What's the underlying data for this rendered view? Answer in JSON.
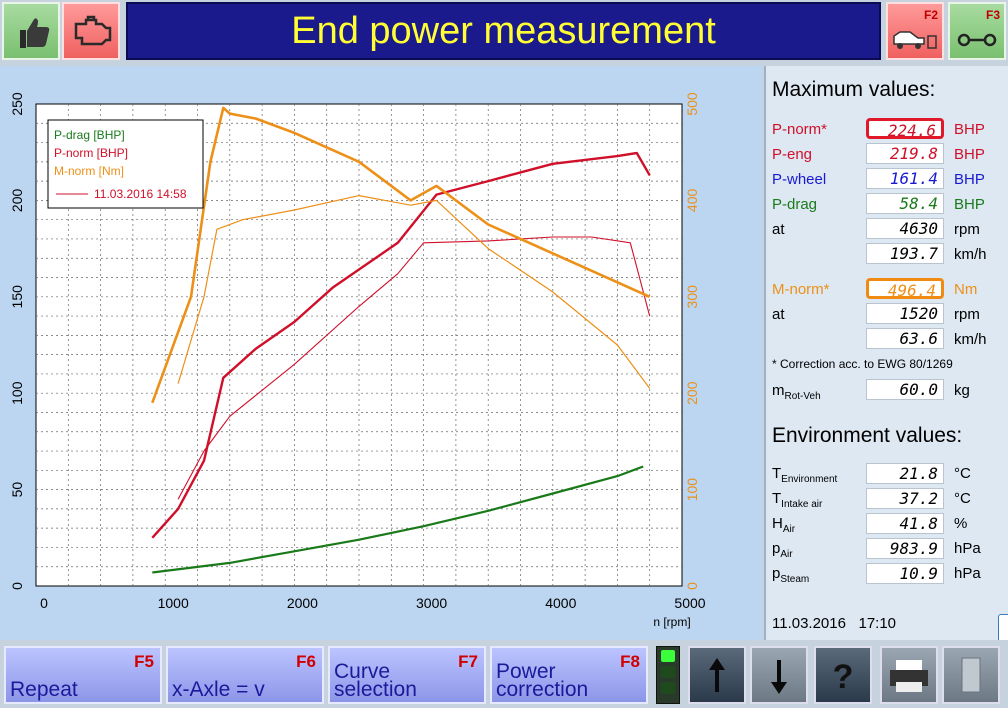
{
  "header": {
    "title": "End power measurement",
    "f2_label": "F2",
    "f3_label": "F3",
    "icons": [
      "thumbs-up-icon",
      "engine-icon",
      "car-on-dyno-icon",
      "rollers-icon"
    ]
  },
  "chart": {
    "xlabel": "n [rpm]",
    "legend": {
      "entries": [
        "P-drag [BHP]",
        "P-norm [BHP]",
        "M-norm [Nm]"
      ],
      "measurement": "11.03.2016 14:58"
    },
    "x_ticks": [
      "0",
      "1000",
      "2000",
      "3000",
      "4000",
      "5000"
    ],
    "y_left_ticks": [
      "0",
      "50",
      "100",
      "150",
      "200",
      "250"
    ],
    "y_right_ticks": [
      "0",
      "100",
      "200",
      "300",
      "400",
      "500"
    ]
  },
  "chart_data": {
    "type": "line",
    "xlabel": "n [rpm]",
    "xlim": [
      0,
      5000
    ],
    "ylim_left": [
      0,
      250
    ],
    "ylim_right": [
      0,
      500
    ],
    "grid": true,
    "legend_position": "top-left",
    "series": [
      {
        "name": "P-drag [BHP]",
        "axis": "left",
        "color": "#1a7a1a",
        "x": [
          900,
          1500,
          2000,
          2500,
          3000,
          3500,
          4000,
          4500,
          4700
        ],
        "y": [
          7,
          12,
          18,
          24,
          31,
          39,
          48,
          57,
          62
        ]
      },
      {
        "name": "P-norm [BHP]",
        "axis": "left",
        "color": "#d0102a",
        "x": [
          900,
          1100,
          1300,
          1450,
          1700,
          2000,
          2300,
          2800,
          3100,
          3500,
          4000,
          4500,
          4650,
          4750
        ],
        "y": [
          25,
          40,
          65,
          108,
          123,
          137,
          155,
          178,
          203,
          210,
          219,
          223,
          224.6,
          213
        ]
      },
      {
        "name": "P-norm [BHP] 11.03.2016 14:58",
        "axis": "left",
        "color": "#d0102a",
        "x": [
          1100,
          1300,
          1500,
          2000,
          2500,
          2800,
          3000,
          3500,
          4000,
          4300,
          4600,
          4750
        ],
        "y": [
          45,
          70,
          88,
          115,
          145,
          162,
          178,
          179,
          181,
          181,
          178,
          140
        ]
      },
      {
        "name": "M-norm [Nm]",
        "axis": "right",
        "color": "#ec9018",
        "x": [
          900,
          1200,
          1350,
          1450,
          1500,
          1700,
          2000,
          2500,
          2900,
          3100,
          3500,
          4000,
          4500,
          4750
        ],
        "y": [
          190,
          300,
          440,
          496,
          490,
          485,
          470,
          440,
          400,
          415,
          375,
          345,
          315,
          300
        ]
      },
      {
        "name": "M-norm [Nm] 11.03.2016 14:58",
        "axis": "right",
        "color": "#ec9018",
        "x": [
          1100,
          1300,
          1400,
          1600,
          2000,
          2500,
          2900,
          3100,
          3500,
          4000,
          4500,
          4750
        ],
        "y": [
          210,
          300,
          370,
          380,
          390,
          405,
          395,
          400,
          350,
          305,
          250,
          205
        ]
      }
    ]
  },
  "max_values": {
    "title": "Maximum values:",
    "rows": [
      {
        "label": "P-norm*",
        "value": "224.6",
        "unit": "BHP",
        "color": "#d0102a"
      },
      {
        "label": "P-eng",
        "value": "219.8",
        "unit": "BHP",
        "color": "#d0102a"
      },
      {
        "label": "P-wheel",
        "value": "161.4",
        "unit": "BHP",
        "color": "#1a1ad0"
      },
      {
        "label": "P-drag",
        "value": "58.4",
        "unit": "BHP",
        "color": "#1a7a1a"
      },
      {
        "label": "at",
        "value": "4630",
        "unit": "rpm",
        "color": "#000000"
      },
      {
        "label": "",
        "value": "193.7",
        "unit": "km/h",
        "color": "#000000"
      },
      {
        "label": "M-norm*",
        "value": "496.4",
        "unit": "Nm",
        "color": "#ec9018"
      },
      {
        "label": "at",
        "value": "1520",
        "unit": "rpm",
        "color": "#000000"
      },
      {
        "label": "",
        "value": "63.6",
        "unit": "km/h",
        "color": "#000000"
      }
    ],
    "correction_note": "* Correction acc. to EWG 80/1269",
    "m_rot_label": "m",
    "m_rot_sub": "Rot-Veh",
    "m_rot_value": "60.0",
    "m_rot_unit": "kg"
  },
  "environment": {
    "title": "Environment values:",
    "rows": [
      {
        "label": "T",
        "sub": "Environment",
        "value": "21.8",
        "unit": "°C"
      },
      {
        "label": "T",
        "sub": "Intake air",
        "value": "37.2",
        "unit": "°C"
      },
      {
        "label": "H",
        "sub": "Air",
        "value": "41.8",
        "unit": "%"
      },
      {
        "label": "p",
        "sub": "Air",
        "value": "983.9",
        "unit": "hPa"
      },
      {
        "label": "p",
        "sub": "Steam",
        "value": "10.9",
        "unit": "hPa"
      }
    ],
    "date": "11.03.2016",
    "time": "17:10"
  },
  "footer": {
    "buttons": [
      {
        "label": "Repeat",
        "key": "F5"
      },
      {
        "label": "x-Axle = v",
        "key": "F6"
      },
      {
        "label": "Curve selection",
        "key": "F7"
      },
      {
        "label": "Power correction",
        "key": "F8"
      }
    ],
    "icons": [
      "signal-light-icon",
      "arrow-up-icon",
      "arrow-down-icon",
      "help-icon",
      "printer-icon",
      "door-exit-icon"
    ]
  }
}
